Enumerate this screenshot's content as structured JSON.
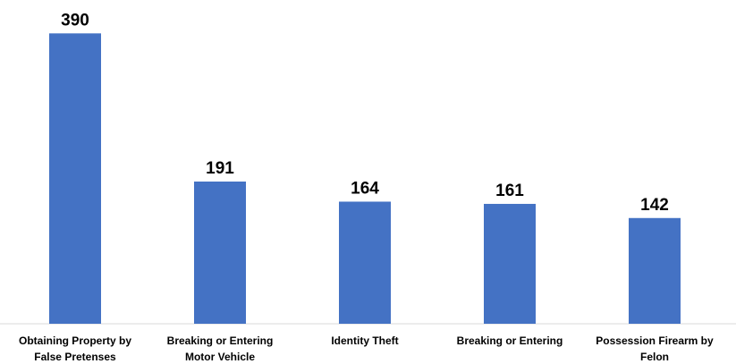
{
  "chart_data": {
    "type": "bar",
    "categories": [
      [
        "Obtaining Property by",
        "False Pretenses"
      ],
      [
        "Breaking or Entering",
        "Motor Vehicle"
      ],
      [
        "Identity Theft"
      ],
      [
        "Breaking or Entering"
      ],
      [
        "Possession Firearm by",
        "Felon"
      ]
    ],
    "values": [
      390,
      191,
      164,
      161,
      142
    ],
    "data_labels": [
      "390",
      "191",
      "164",
      "161",
      "142"
    ],
    "ylim": [
      0,
      400
    ],
    "grid": false,
    "legend": "none",
    "colors": {
      "bar": "#4472C4",
      "baseline": "#D9D9D9"
    }
  }
}
